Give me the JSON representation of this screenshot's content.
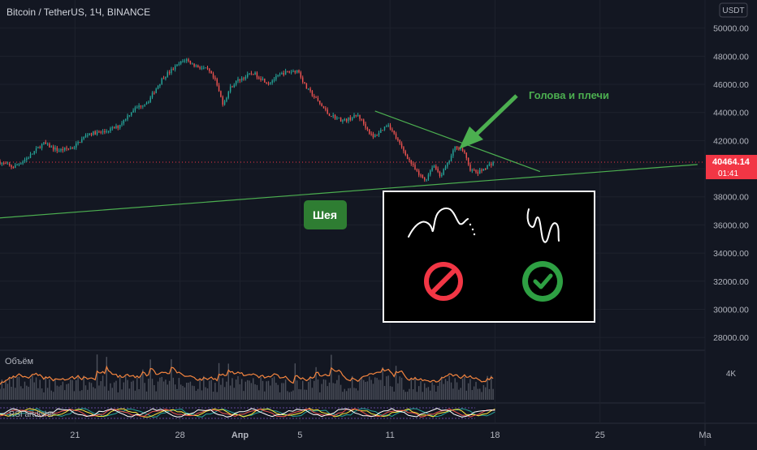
{
  "header": {
    "title": "Bitcoin / TetherUS, 1Ч, BINANCE"
  },
  "price_axis": {
    "currency": "USDT",
    "current_price": "40464.14",
    "countdown": "01:41",
    "volume_tick": "4K"
  },
  "annotations": {
    "pattern_label": "Голова и плечи",
    "neckline_label": "Шея"
  },
  "panes": {
    "volume_label": "Объём",
    "rsi_label": "RSI artdishe"
  },
  "colors": {
    "background": "#131722",
    "up_candle": "#26a69a",
    "down_candle": "#ef5350",
    "trendline": "#4caf50",
    "annotation_green": "#4caf50",
    "price_tag": "#f23645",
    "volume_ma": "#f5853f",
    "forbid_icon": "#f23645",
    "ok_icon": "#2ea043"
  },
  "icons": [
    "forbidden-icon",
    "check-circle-icon",
    "rounded-top-sketch-icon",
    "sharp-zigzag-sketch-icon",
    "green-arrow-icon"
  ],
  "chart_data": {
    "type": "candlestick",
    "title": "Bitcoin / TetherUS, 1Ч, BINANCE",
    "y_ticks": [
      28000,
      30000,
      32000,
      34000,
      36000,
      38000,
      40000,
      42000,
      44000,
      46000,
      48000,
      50000
    ],
    "y_tick_labels": [
      "28000.00",
      "30000.00",
      "32000.00",
      "34000.00",
      "36000.00",
      "38000.00",
      "40000.00",
      "42000.00",
      "44000.00",
      "46000.00",
      "48000.00",
      "50000.00"
    ],
    "ylim": [
      27200,
      52000
    ],
    "x_tick_labels": [
      "21",
      "28",
      "Апр",
      "5",
      "11",
      "18",
      "25",
      "Ma"
    ],
    "x_tick_days": [
      21,
      28,
      32,
      36,
      42,
      49,
      56,
      63
    ],
    "xlim_days": [
      16,
      63
    ],
    "price_path": [
      [
        16,
        40500
      ],
      [
        17,
        40100
      ],
      [
        18,
        40800
      ],
      [
        19,
        41800
      ],
      [
        20,
        41300
      ],
      [
        21,
        41500
      ],
      [
        22,
        42500
      ],
      [
        23,
        42600
      ],
      [
        24,
        43000
      ],
      [
        25,
        44200
      ],
      [
        26,
        44800
      ],
      [
        27,
        46500
      ],
      [
        28,
        47400
      ],
      [
        28.5,
        47800
      ],
      [
        29,
        47400
      ],
      [
        30,
        47000
      ],
      [
        30.5,
        46200
      ],
      [
        31,
        44600
      ],
      [
        31.5,
        45800
      ],
      [
        32,
        46300
      ],
      [
        33,
        46800
      ],
      [
        34,
        46100
      ],
      [
        35,
        46800
      ],
      [
        36,
        47000
      ],
      [
        36.5,
        45800
      ],
      [
        37,
        45200
      ],
      [
        38,
        43900
      ],
      [
        39,
        43400
      ],
      [
        40,
        43800
      ],
      [
        41,
        42200
      ],
      [
        42,
        43200
      ],
      [
        43,
        41300
      ],
      [
        44,
        39600
      ],
      [
        44.5,
        39200
      ],
      [
        45,
        40300
      ],
      [
        45.5,
        39500
      ],
      [
        46,
        40400
      ],
      [
        46.5,
        41600
      ],
      [
        47,
        41300
      ],
      [
        47.5,
        39900
      ],
      [
        48,
        39700
      ],
      [
        48.5,
        40100
      ],
      [
        49,
        40464
      ]
    ],
    "neckline": {
      "from": [
        16,
        36500
      ],
      "to": [
        62.5,
        40300
      ]
    },
    "descending_line": {
      "from": [
        41,
        44100
      ],
      "to": [
        52,
        39800
      ]
    },
    "current_price": 40464.14,
    "volume_tick": "4K"
  }
}
